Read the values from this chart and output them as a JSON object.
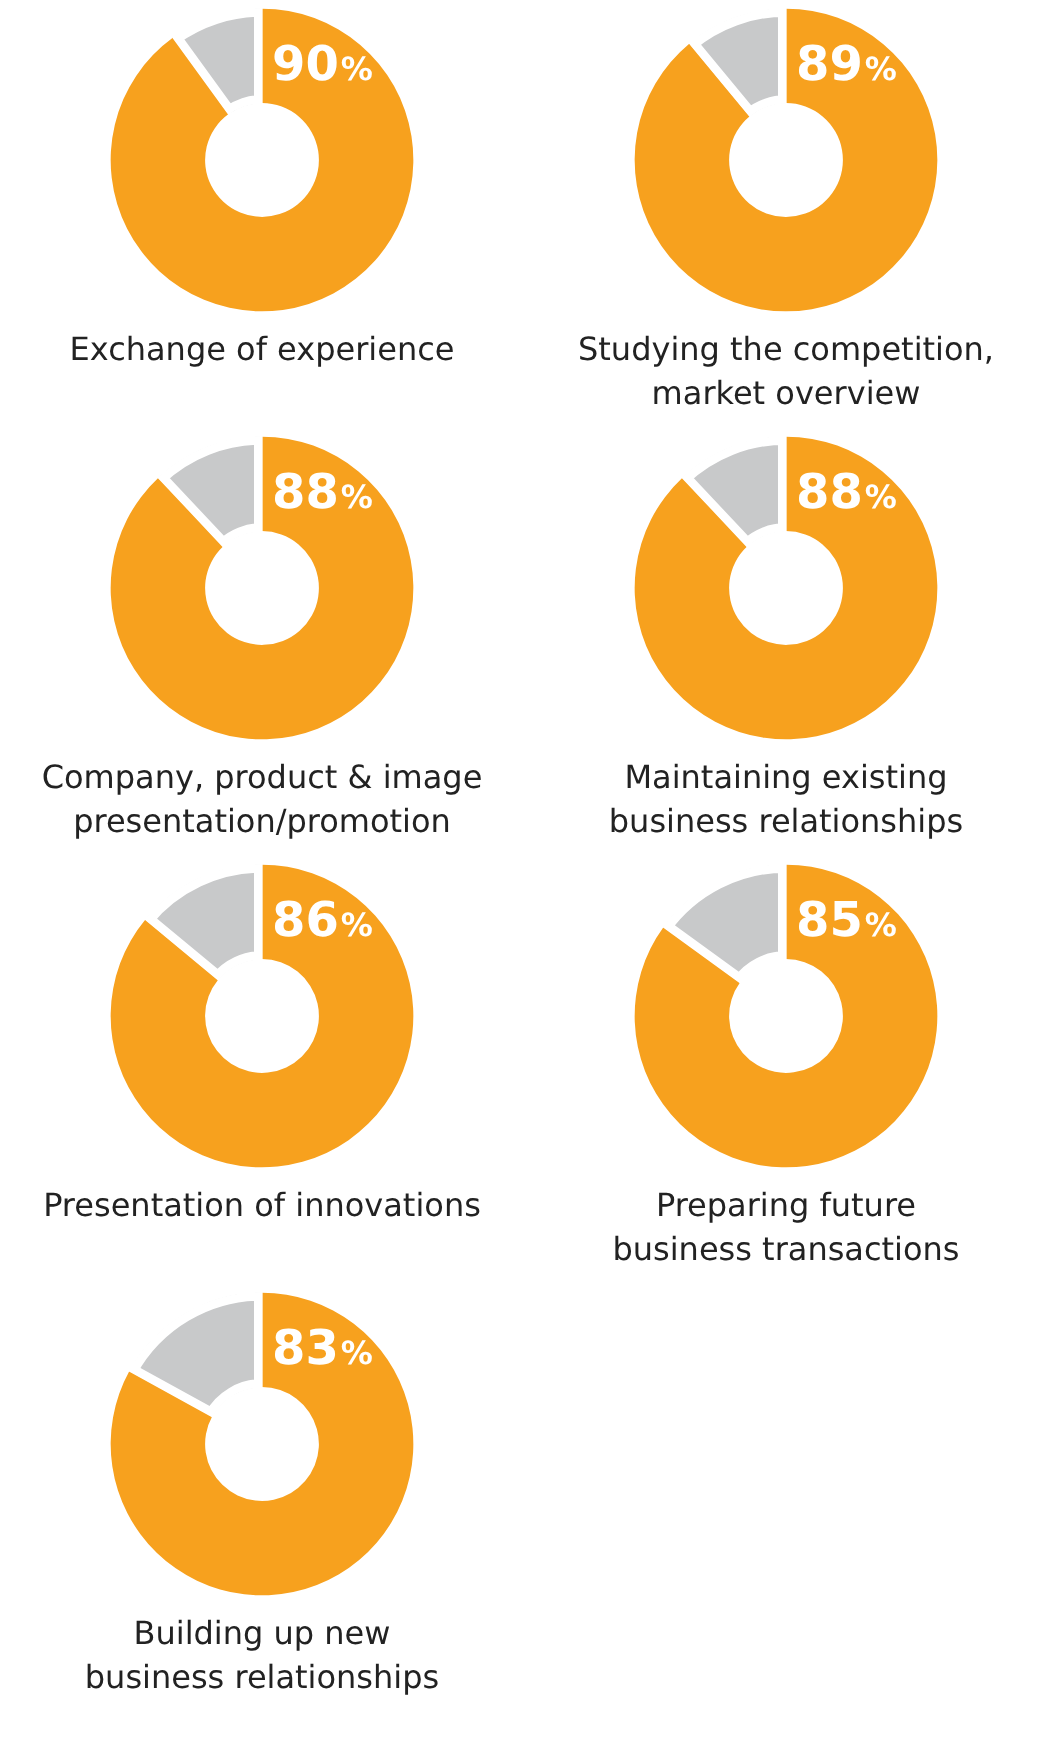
{
  "chart_data": [
    {
      "type": "donut",
      "title": "Exchange of experience",
      "categories": [
        null,
        null
      ],
      "values": [
        90,
        10
      ],
      "colors": [
        "#f7a11e",
        "#c8c9ca"
      ],
      "value_labels": [
        "90%",
        null
      ],
      "legend": false
    },
    {
      "type": "donut",
      "title": "Studying the competition,\nmarket overview",
      "categories": [
        null,
        null
      ],
      "values": [
        89,
        11
      ],
      "colors": [
        "#f7a11e",
        "#c8c9ca"
      ],
      "value_labels": [
        "89%",
        null
      ],
      "legend": false
    },
    {
      "type": "donut",
      "title": "Company, product & image\npresentation/promotion",
      "categories": [
        null,
        null
      ],
      "values": [
        88,
        12
      ],
      "colors": [
        "#f7a11e",
        "#c8c9ca"
      ],
      "value_labels": [
        "88%",
        null
      ],
      "legend": false
    },
    {
      "type": "donut",
      "title": "Maintaining existing\nbusiness relationships",
      "categories": [
        null,
        null
      ],
      "values": [
        88,
        12
      ],
      "colors": [
        "#f7a11e",
        "#c8c9ca"
      ],
      "value_labels": [
        "88%",
        null
      ],
      "legend": false
    },
    {
      "type": "donut",
      "title": "Presentation of innovations",
      "categories": [
        null,
        null
      ],
      "values": [
        86,
        14
      ],
      "colors": [
        "#f7a11e",
        "#c8c9ca"
      ],
      "value_labels": [
        "86%",
        null
      ],
      "legend": false
    },
    {
      "type": "donut",
      "title": "Preparing future\nbusiness transactions",
      "categories": [
        null,
        null
      ],
      "values": [
        85,
        15
      ],
      "colors": [
        "#f7a11e",
        "#c8c9ca"
      ],
      "value_labels": [
        "85%",
        null
      ],
      "legend": false
    },
    {
      "type": "donut",
      "title": "Building up new\nbusiness relationships",
      "categories": [
        null,
        null
      ],
      "values": [
        83,
        17
      ],
      "colors": [
        "#f7a11e",
        "#c8c9ca"
      ],
      "value_labels": [
        "83%",
        null
      ],
      "legend": false
    }
  ]
}
